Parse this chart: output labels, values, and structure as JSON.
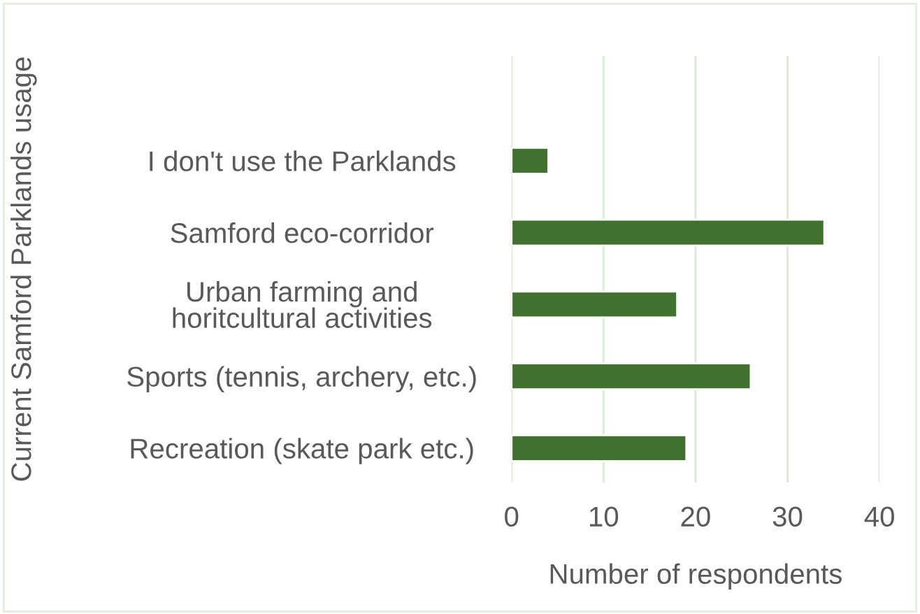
{
  "chart_data": {
    "type": "bar",
    "orientation": "horizontal",
    "ylabel": "Current Samford Parklands usage",
    "xlabel": "Number of respondents",
    "categories": [
      "I don't use the Parklands",
      "Samford eco-corridor",
      "Urban farming and\nhoritcultural activities",
      "Sports (tennis, archery, etc.)",
      "Recreation (skate park etc.)"
    ],
    "values": [
      4,
      34,
      18,
      26,
      19
    ],
    "color": "#40712f",
    "xlim": [
      0,
      40
    ],
    "xticks": [
      0,
      10,
      20,
      30,
      40
    ],
    "grid": "x",
    "legend": false
  }
}
